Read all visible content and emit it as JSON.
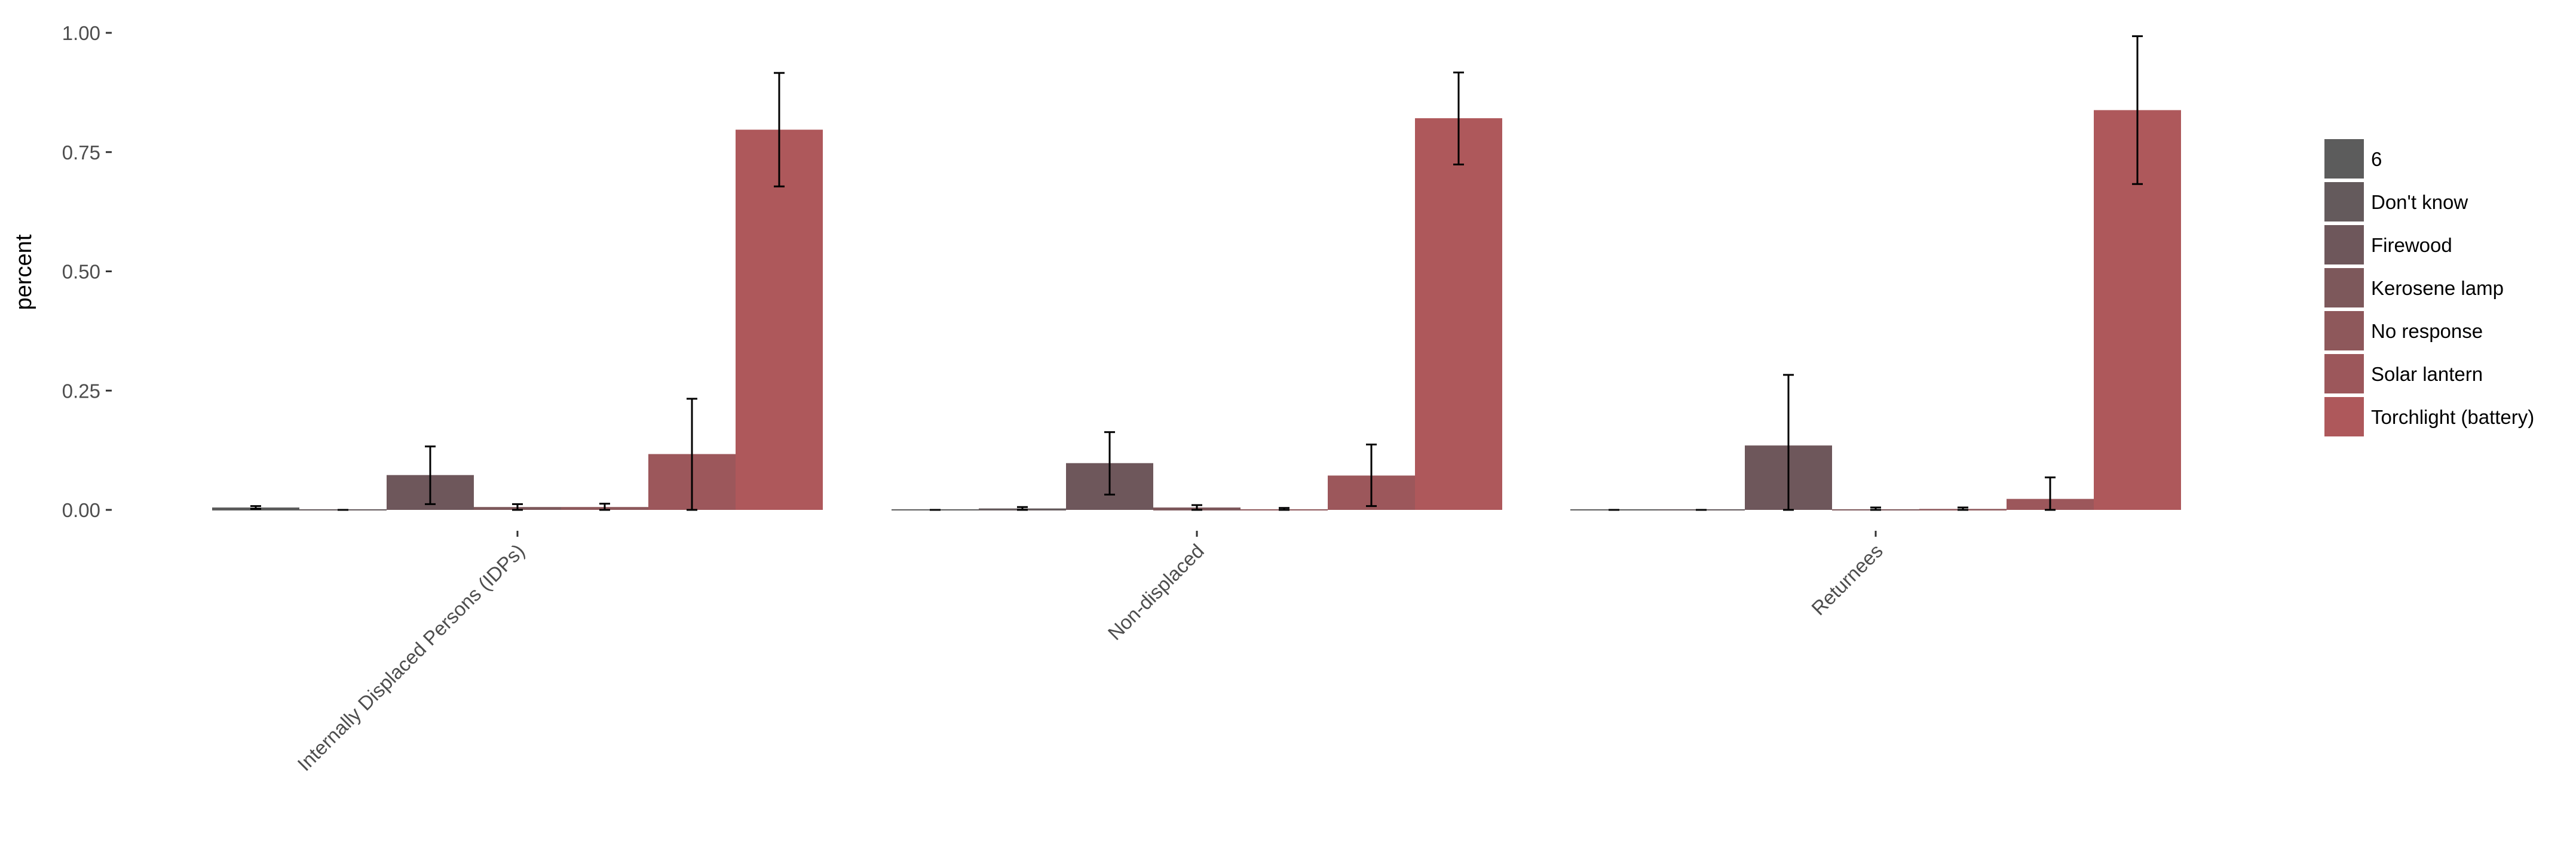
{
  "chart_data": {
    "type": "bar",
    "title": "",
    "xlabel": "",
    "ylabel": "percent",
    "ylim": [
      0,
      1.0
    ],
    "yticks": [
      "0.00",
      "0.25",
      "0.50",
      "0.75",
      "1.00"
    ],
    "ytick_values": [
      0,
      0.25,
      0.5,
      0.75,
      1.0
    ],
    "grid": false,
    "legend_position": "right",
    "categories": [
      "Internally Displaced Persons (IDPs)",
      "Non-displaced",
      "Returnees"
    ],
    "series": [
      {
        "name": "6",
        "color": "#5c5c5c",
        "values": [
          0.005,
          0.0,
          0.0
        ],
        "err_low": [
          0.002,
          0.0,
          0.0
        ],
        "err_high": [
          0.008,
          0.0,
          0.0
        ]
      },
      {
        "name": "Don't know",
        "color": "#645a5c",
        "values": [
          0.0,
          0.003,
          0.0
        ],
        "err_low": [
          0.0,
          0.0,
          0.0
        ],
        "err_high": [
          0.0,
          0.006,
          0.0
        ]
      },
      {
        "name": "Firewood",
        "color": "#6e575b",
        "values": [
          0.073,
          0.098,
          0.135
        ],
        "err_low": [
          0.012,
          0.032,
          0.0
        ],
        "err_high": [
          0.133,
          0.163,
          0.283
        ]
      },
      {
        "name": "Kerosene lamp",
        "color": "#7d585b",
        "values": [
          0.006,
          0.005,
          0.0
        ],
        "err_low": [
          0.0,
          0.0,
          0.0
        ],
        "err_high": [
          0.012,
          0.01,
          0.005
        ]
      },
      {
        "name": "No response",
        "color": "#8e585b",
        "values": [
          0.006,
          0.0,
          0.002
        ],
        "err_low": [
          0.0,
          0.0,
          0.0
        ],
        "err_high": [
          0.013,
          0.004,
          0.005
        ]
      },
      {
        "name": "Solar lantern",
        "color": "#9c575b",
        "values": [
          0.117,
          0.072,
          0.023
        ],
        "err_low": [
          0.0,
          0.008,
          0.0
        ],
        "err_high": [
          0.233,
          0.137,
          0.068
        ]
      },
      {
        "name": "Torchlight (battery)",
        "color": "#ae585b",
        "values": [
          0.797,
          0.821,
          0.838
        ],
        "err_low": [
          0.678,
          0.724,
          0.683
        ],
        "err_high": [
          0.916,
          0.917,
          0.993
        ]
      }
    ]
  }
}
